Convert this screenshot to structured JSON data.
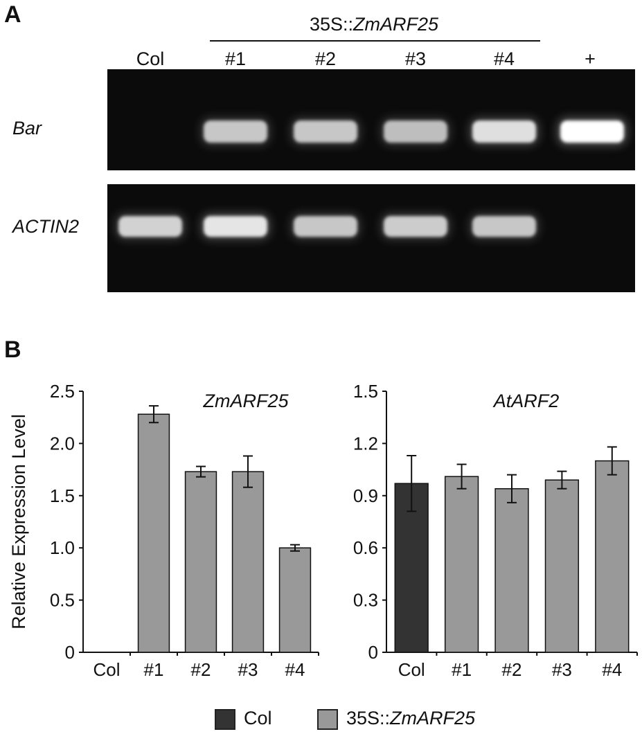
{
  "panelA": {
    "letter": "A",
    "construct_prefix": "35S::",
    "construct_gene": "ZmARF25",
    "lanes": [
      "Col",
      "#1",
      "#2",
      "#3",
      "#4",
      "+"
    ],
    "genes": [
      "Bar",
      "ACTIN2"
    ],
    "band_intensity": {
      "Bar": [
        0,
        0.72,
        0.72,
        0.68,
        0.85,
        1.0
      ],
      "ACTIN2": [
        0.78,
        0.88,
        0.72,
        0.75,
        0.72,
        0
      ]
    }
  },
  "panelB": {
    "letter": "B"
  },
  "chart_data": [
    {
      "type": "bar",
      "title": "ZmARF25",
      "ylabel": "Relative Expression Level",
      "xlabel": "",
      "categories": [
        "Col",
        "#1",
        "#2",
        "#3",
        "#4"
      ],
      "values": [
        0,
        2.28,
        1.73,
        1.73,
        1.0
      ],
      "errors": [
        0,
        0.08,
        0.05,
        0.15,
        0.03
      ],
      "ylim": [
        0,
        2.5
      ],
      "yticks": [
        "0",
        "0.5",
        "1.0",
        "1.5",
        "2.0",
        "2.5"
      ],
      "ytick_values": [
        0,
        0.5,
        1.0,
        1.5,
        2.0,
        2.5
      ],
      "bar_colors": [
        "#999999",
        "#999999",
        "#999999",
        "#999999",
        "#999999"
      ]
    },
    {
      "type": "bar",
      "title": "AtARF2",
      "ylabel": "",
      "xlabel": "",
      "categories": [
        "Col",
        "#1",
        "#2",
        "#3",
        "#4"
      ],
      "values": [
        0.97,
        1.01,
        0.94,
        0.99,
        1.1
      ],
      "errors": [
        0.16,
        0.07,
        0.08,
        0.05,
        0.08
      ],
      "ylim": [
        0,
        1.5
      ],
      "yticks": [
        "0",
        "0.3",
        "0.6",
        "0.9",
        "1.2",
        "1.5"
      ],
      "ytick_values": [
        0,
        0.3,
        0.6,
        0.9,
        1.2,
        1.5
      ],
      "bar_colors": [
        "#333333",
        "#999999",
        "#999999",
        "#999999",
        "#999999"
      ]
    }
  ],
  "legend": [
    {
      "label": "Col",
      "label_italic": "",
      "color": "#333333"
    },
    {
      "label": "35S::",
      "label_italic": "ZmARF25",
      "color": "#999999"
    }
  ]
}
